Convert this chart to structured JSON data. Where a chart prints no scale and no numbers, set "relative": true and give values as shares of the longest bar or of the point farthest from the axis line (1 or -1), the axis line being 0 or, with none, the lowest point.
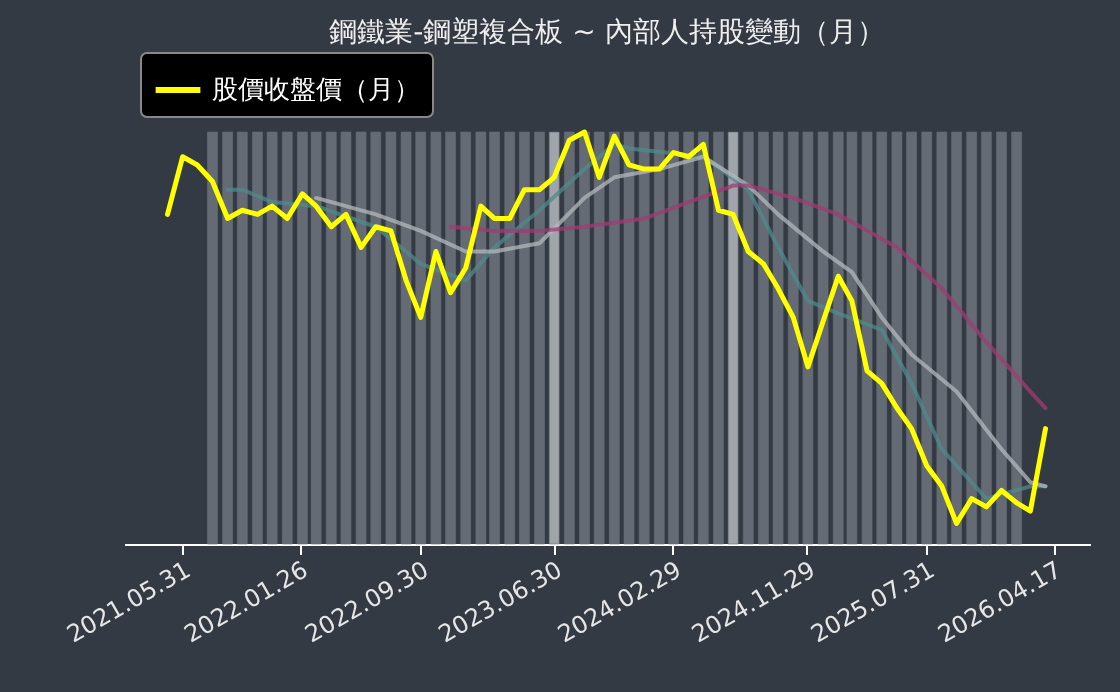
{
  "chart_data": {
    "type": "line",
    "title": "鋼鐵業-鋼塑複合板 ~ 內部人持股變動（月）",
    "relative": true,
    "legend": "top left",
    "grid": false,
    "marker": "none",
    "xlim": [
      "2021-02",
      "2026-07"
    ],
    "xticks": [
      {
        "value": "2021-05-31",
        "label": "2021.05.31"
      },
      {
        "value": "2022-01-26",
        "label": "2022.01.26"
      },
      {
        "value": "2022-09-30",
        "label": "2022.09.30"
      },
      {
        "value": "2023-06-30",
        "label": "2023.06.30"
      },
      {
        "value": "2024-02-29",
        "label": "2024.02.29"
      },
      {
        "value": "2024-11-29",
        "label": "2024.11.29"
      },
      {
        "value": "2025-07-31",
        "label": "2025.07.31"
      },
      {
        "value": "2026-04-17",
        "label": "2026.04.17"
      }
    ],
    "x": [
      "2021-05",
      "2021-06",
      "2021-07",
      "2021-08",
      "2021-09",
      "2021-10",
      "2021-11",
      "2021-12",
      "2022-01",
      "2022-02",
      "2022-03",
      "2022-04",
      "2022-05",
      "2022-06",
      "2022-07",
      "2022-08",
      "2022-09",
      "2022-10",
      "2022-11",
      "2022-12",
      "2023-01",
      "2023-02",
      "2023-03",
      "2023-04",
      "2023-05",
      "2023-06",
      "2023-07",
      "2023-08",
      "2023-09",
      "2023-10",
      "2023-11",
      "2023-12",
      "2024-01",
      "2024-02",
      "2024-03",
      "2024-04",
      "2024-05",
      "2024-06",
      "2024-07",
      "2024-08",
      "2024-09",
      "2024-10",
      "2024-11",
      "2024-12",
      "2025-01",
      "2025-02",
      "2025-03",
      "2025-04",
      "2025-05",
      "2025-06",
      "2025-07",
      "2025-08",
      "2025-09",
      "2025-10",
      "2025-11",
      "2025-12",
      "2026-01",
      "2026-02",
      "2026-03",
      "2026-04"
    ],
    "series": [
      {
        "type": "bar",
        "color": "#646b75",
        "x": [
          "2021-08",
          "2021-09",
          "2021-10",
          "2021-11",
          "2021-12",
          "2022-01",
          "2022-02",
          "2022-03",
          "2022-04",
          "2022-05",
          "2022-06",
          "2022-07",
          "2022-08",
          "2022-09",
          "2022-10",
          "2022-11",
          "2022-12",
          "2023-01",
          "2023-02",
          "2023-03",
          "2023-04",
          "2023-05",
          "2023-06",
          "2023-07",
          "2023-08",
          "2023-09",
          "2023-10",
          "2023-11",
          "2023-12",
          "2024-01",
          "2024-02",
          "2024-03",
          "2024-04",
          "2024-05",
          "2024-06",
          "2024-07",
          "2024-08",
          "2024-09",
          "2024-10",
          "2024-11",
          "2024-12",
          "2025-01",
          "2025-02",
          "2025-03",
          "2025-04",
          "2025-05",
          "2025-06",
          "2025-07",
          "2025-08",
          "2025-09",
          "2025-10",
          "2025-11",
          "2025-12",
          "2026-01",
          "2026-02"
        ],
        "values": [
          1,
          1,
          1,
          1,
          1,
          1,
          1,
          1,
          1,
          1,
          1,
          1,
          1,
          1,
          1,
          1,
          1,
          1,
          1,
          1,
          1,
          1,
          1,
          1,
          1,
          1,
          1,
          1,
          1,
          1,
          1,
          1,
          1,
          1,
          1,
          1,
          1,
          1,
          1,
          1,
          1,
          1,
          1,
          1,
          1,
          1,
          1,
          1,
          1,
          1,
          1,
          1,
          1,
          1,
          1
        ],
        "colors": [
          "#646b75",
          "#646b75",
          "#646b75",
          "#646b75",
          "#646b75",
          "#646b75",
          "#646b75",
          "#646b75",
          "#646b75",
          "#646b75",
          "#646b75",
          "#646b75",
          "#646b75",
          "#646b75",
          "#646b75",
          "#646b75",
          "#646b75",
          "#646b75",
          "#646b75",
          "#646b75",
          "#646b75",
          "#646b75",
          "#646b75",
          "#a0a5ab",
          "#646b75",
          "#646b75",
          "#646b75",
          "#646b75",
          "#646b75",
          "#646b75",
          "#646b75",
          "#646b75",
          "#646b75",
          "#646b75",
          "#646b75",
          "#a0a5ab",
          "#646b75",
          "#646b75",
          "#646b75",
          "#646b75",
          "#646b75",
          "#646b75",
          "#646b75",
          "#646b75",
          "#646b75",
          "#646b75",
          "#646b75",
          "#646b75",
          "#646b75",
          "#646b75",
          "#646b75",
          "#646b75",
          "#646b75",
          "#646b75",
          "#646b75"
        ]
      },
      {
        "color": "#4f8a8b",
        "x": [
          "2021-09",
          "2021-10",
          "2021-12",
          "2022-03",
          "2022-07",
          "2022-10",
          "2023-01",
          "2023-03",
          "2023-06",
          "2023-09",
          "2023-11",
          "2023-12",
          "2024-05",
          "2024-08",
          "2024-10",
          "2024-12",
          "2025-02",
          "2025-05",
          "2025-07",
          "2025-09",
          "2025-12",
          "2026-03",
          "2026-04"
        ],
        "values": [
          0.86,
          0.86,
          0.83,
          0.82,
          0.77,
          0.68,
          0.64,
          0.72,
          0.81,
          0.91,
          0.97,
          0.96,
          0.94,
          0.86,
          0.72,
          0.59,
          0.56,
          0.52,
          0.39,
          0.23,
          0.11,
          0.14,
          0.14
        ]
      },
      {
        "color": "#b4b8be",
        "x": [
          "2022-03",
          "2022-07",
          "2022-10",
          "2023-01",
          "2023-03",
          "2023-06",
          "2023-09",
          "2023-11",
          "2024-02",
          "2024-05",
          "2024-08",
          "2024-10",
          "2025-01",
          "2025-03",
          "2025-05",
          "2025-07",
          "2025-10",
          "2026-01",
          "2026-03",
          "2026-04"
        ],
        "values": [
          0.84,
          0.8,
          0.76,
          0.71,
          0.71,
          0.73,
          0.84,
          0.89,
          0.91,
          0.94,
          0.87,
          0.8,
          0.71,
          0.66,
          0.55,
          0.46,
          0.37,
          0.23,
          0.15,
          0.14
        ]
      },
      {
        "color": "#a23b72",
        "x": [
          "2022-12",
          "2023-03",
          "2023-06",
          "2023-09",
          "2024-01",
          "2024-04",
          "2024-07",
          "2024-08",
          "2024-11",
          "2025-02",
          "2025-06",
          "2025-09",
          "2025-12",
          "2026-03",
          "2026-04"
        ],
        "values": [
          0.77,
          0.76,
          0.76,
          0.77,
          0.79,
          0.83,
          0.87,
          0.87,
          0.84,
          0.8,
          0.72,
          0.62,
          0.49,
          0.37,
          0.33
        ]
      },
      {
        "name": "股價收盤價（月）",
        "color": "#ffff00",
        "values": [
          0.8,
          0.94,
          0.92,
          0.88,
          0.79,
          0.81,
          0.8,
          0.82,
          0.79,
          0.85,
          0.82,
          0.77,
          0.8,
          0.72,
          0.77,
          0.76,
          0.64,
          0.55,
          0.71,
          0.61,
          0.67,
          0.82,
          0.79,
          0.79,
          0.86,
          0.86,
          0.89,
          0.98,
          1.0,
          0.89,
          0.99,
          0.92,
          0.91,
          0.91,
          0.95,
          0.94,
          0.97,
          0.81,
          0.8,
          0.71,
          0.68,
          0.62,
          0.55,
          0.43,
          0.54,
          0.65,
          0.59,
          0.42,
          0.39,
          0.33,
          0.28,
          0.19,
          0.14,
          0.05,
          0.11,
          0.09,
          0.13,
          0.1,
          0.08,
          0.28
        ]
      }
    ]
  }
}
